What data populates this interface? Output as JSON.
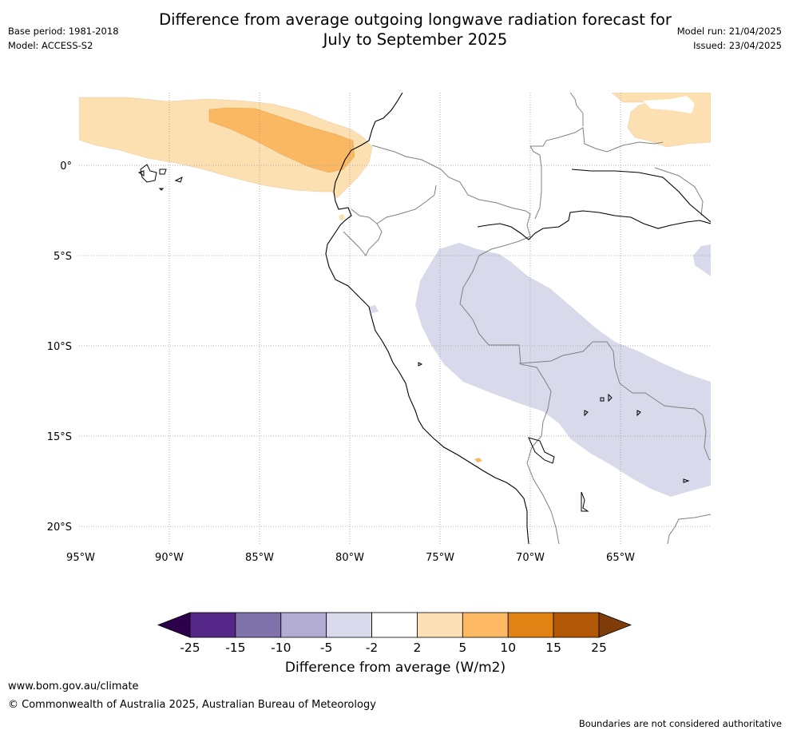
{
  "header": {
    "title_line1": "Difference from average outgoing longwave radiation forecast for",
    "title_line2": "July to September 2025",
    "base_period": "Base period: 1981-2018",
    "model": "Model: ACCESS-S2",
    "model_run": "Model run: 21/04/2025",
    "issued": "Issued: 23/04/2025"
  },
  "map": {
    "lat_labels": [
      "0°",
      "5°S",
      "10°S",
      "15°S",
      "20°S"
    ],
    "lon_labels": [
      "95°W",
      "90°W",
      "85°W",
      "80°W",
      "75°W",
      "70°W",
      "65°W"
    ],
    "colors": {
      "ocean_land": "#ffffff",
      "coast": "#000000",
      "border": "#808080",
      "grid": "#999999",
      "pos_5": "#fde0b2",
      "pos_10": "#fbb862",
      "neg_5": "#d8d9ea"
    }
  },
  "colorbar": {
    "ticks": [
      "-25",
      "-15",
      "-10",
      "-5",
      "-2",
      "2",
      "5",
      "10",
      "15",
      "25"
    ],
    "colors": [
      "#2d004b",
      "#542788",
      "#8073ac",
      "#b2abd2",
      "#d8daeb",
      "#ffffff",
      "#fee0b6",
      "#fdb863",
      "#e08214",
      "#b35806",
      "#7f3b08"
    ],
    "label": "Difference from average (W/m2)"
  },
  "footer": {
    "url": "www.bom.gov.au/climate",
    "copyright": "© Commonwealth of Australia 2025, Australian Bureau of Meteorology",
    "disclaimer": "Boundaries are not considered authoritative"
  }
}
